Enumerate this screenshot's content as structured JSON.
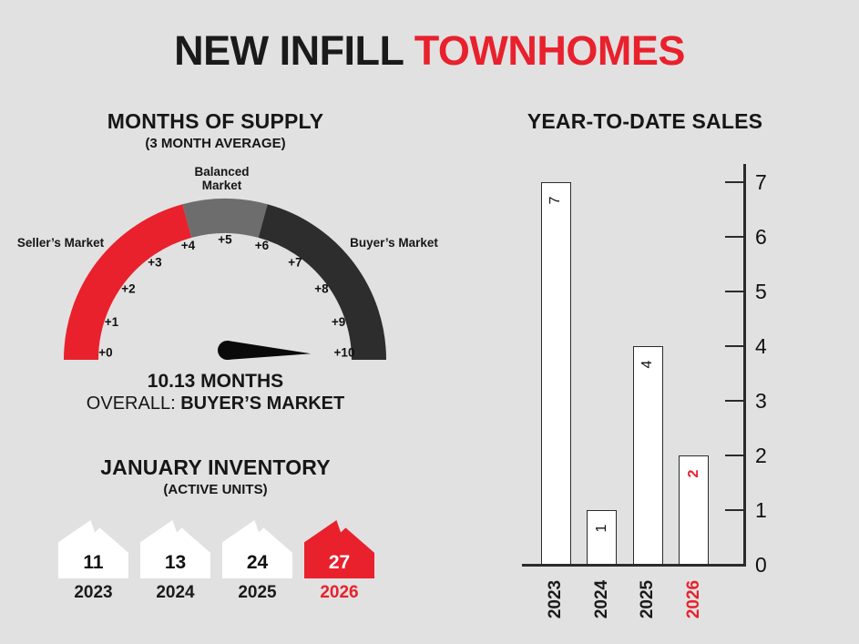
{
  "page_title": {
    "black": "NEW INFILL ",
    "red": "TOWNHOMES"
  },
  "colors": {
    "background": "#e2e1e1",
    "accent_red": "#e8212d",
    "dark": "#2d2d2d",
    "mid_gray": "#6d6d6d",
    "bar_outline": "#2b2b2b"
  },
  "chart_data": [
    {
      "type": "gauge",
      "title": "MONTHS OF SUPPLY",
      "subtitle": "(3 MONTH AVERAGE)",
      "min": 0,
      "max": 10,
      "value": 10.13,
      "value_label": "10.13 MONTHS",
      "overall_prefix": "OVERALL: ",
      "overall_value": "BUYER’S MARKET",
      "tick_labels": [
        "+0",
        "+1",
        "+2",
        "+3",
        "+4",
        "+5",
        "+6",
        "+7",
        "+8",
        "+9",
        "+10"
      ],
      "segments": [
        {
          "label": "Seller’s Market",
          "from": 0,
          "to": 4.15,
          "color": "#e8212d",
          "label_color": "#e8212d"
        },
        {
          "label": "Balanced Market",
          "from": 4.15,
          "to": 5.85,
          "color": "#6d6d6d",
          "label_color": "#8e8e8e"
        },
        {
          "label": "Buyer’s Market",
          "from": 5.85,
          "to": 10,
          "color": "#2d2d2d",
          "label_color": "#333333"
        }
      ],
      "needle_color": "#0a0a0a"
    },
    {
      "type": "bar",
      "title": "YEAR-TO-DATE SALES",
      "categories": [
        "2023",
        "2024",
        "2025",
        "2026"
      ],
      "values": [
        7,
        1,
        4,
        2
      ],
      "bar_labels": [
        "7",
        "1",
        "4",
        "2"
      ],
      "highlight_index": 3,
      "highlight_color": "#e8212d",
      "ylim": [
        0,
        7
      ],
      "yticks": [
        0,
        1,
        2,
        3,
        4,
        5,
        6,
        7
      ],
      "axis_side": "right",
      "grid": false,
      "bar_fill": "#ffffff",
      "bar_outline": "#2b2b2b",
      "axis_color": "#2b2b2b"
    },
    {
      "type": "pictogram",
      "title": "JANUARY INVENTORY",
      "subtitle": "(ACTIVE UNITS)",
      "icon": "house-icon",
      "categories": [
        "2023",
        "2024",
        "2025",
        "2026"
      ],
      "values": [
        11,
        13,
        24,
        27
      ],
      "highlight_index": 3,
      "house_fill": "#ffffff",
      "highlight_fill": "#e8212d",
      "number_color": "#111111",
      "highlight_number_color": "#ffffff"
    }
  ]
}
